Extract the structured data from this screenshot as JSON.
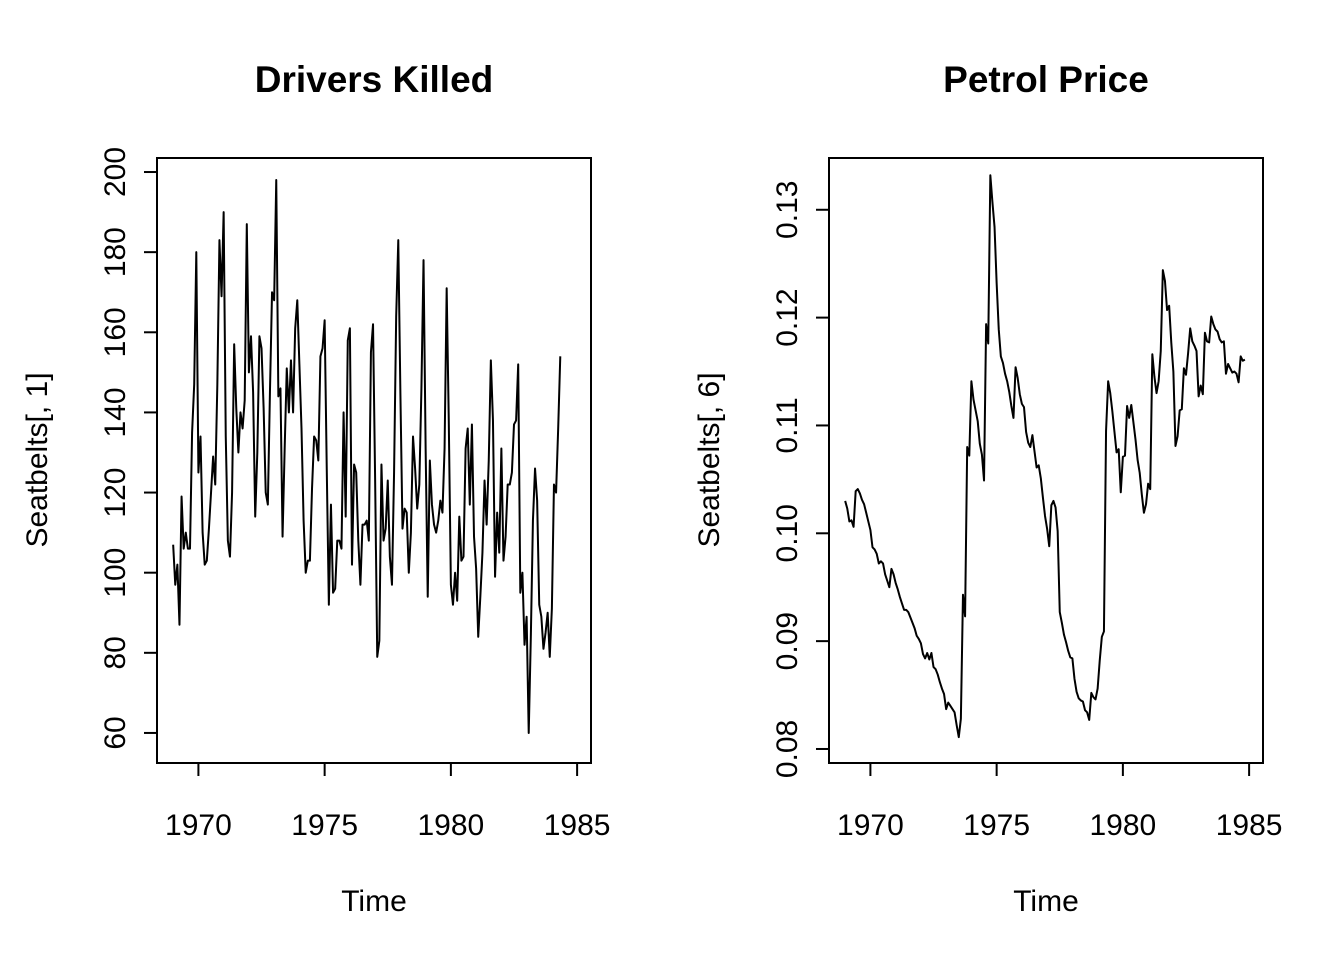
{
  "chart_data": [
    {
      "type": "line",
      "title": "Drivers Killed",
      "xlabel": "Time",
      "ylabel": "Seatbelts[, 1]",
      "xlim": [
        1968.36,
        1985.55
      ],
      "ylim": [
        52.5,
        203.5
      ],
      "xticks": [
        1970,
        1975,
        1980,
        1985
      ],
      "xtick_labels": [
        "1970",
        "1975",
        "1980",
        "1985"
      ],
      "yticks": [
        60,
        80,
        100,
        120,
        140,
        160,
        180,
        200
      ],
      "ytick_labels": [
        "60",
        "80",
        "100",
        "120",
        "140",
        "160",
        "180",
        "200"
      ],
      "grid": false,
      "legend": "none",
      "x_start": 1969,
      "frequency": 12,
      "series": [
        {
          "values": [
            107,
            97,
            102,
            87,
            119,
            106,
            110,
            106,
            106,
            135,
            147,
            180,
            125,
            134,
            110,
            102,
            103,
            111,
            120,
            129,
            122,
            147,
            183,
            169,
            190,
            134,
            108,
            104,
            120,
            157,
            141,
            130,
            140,
            136,
            143,
            187,
            150,
            159,
            145,
            114,
            130,
            159,
            156,
            141,
            120,
            117,
            145,
            170,
            168,
            198,
            144,
            146,
            109,
            131,
            151,
            140,
            153,
            140,
            161,
            168,
            152,
            136,
            113,
            100,
            103,
            103,
            121,
            134,
            133,
            128,
            154,
            156,
            163,
            126,
            92,
            117,
            95,
            96,
            108,
            108,
            106,
            140,
            114,
            158,
            161,
            102,
            127,
            125,
            108,
            97,
            112,
            112,
            113,
            108,
            155,
            162,
            123,
            79,
            83,
            127,
            108,
            111,
            123,
            104,
            97,
            125,
            164,
            183,
            145,
            111,
            116,
            115,
            100,
            110,
            134,
            126,
            116,
            122,
            146,
            178,
            131,
            94,
            128,
            117,
            112,
            110,
            113,
            118,
            115,
            131,
            171,
            138,
            97,
            92,
            100,
            93,
            114,
            103,
            104,
            131,
            136,
            117,
            137,
            109,
            101,
            84,
            94,
            105,
            123,
            112,
            128,
            153,
            138,
            99,
            115,
            105,
            131,
            103,
            109,
            122,
            122,
            125,
            137,
            138,
            152,
            95,
            100,
            82,
            89,
            60,
            84,
            113,
            126,
            118,
            92,
            89,
            81,
            85,
            90,
            79,
            91,
            122,
            120,
            136,
            154
          ]
        }
      ]
    },
    {
      "type": "line",
      "title": "Petrol Price",
      "xlabel": "Time",
      "ylabel": "Seatbelts[, 6]",
      "xlim": [
        1968.36,
        1985.55
      ],
      "ylim": [
        0.0787,
        0.1348
      ],
      "xticks": [
        1970,
        1975,
        1980,
        1985
      ],
      "xtick_labels": [
        "1970",
        "1975",
        "1980",
        "1985"
      ],
      "yticks": [
        0.08,
        0.09,
        0.1,
        0.11,
        0.12,
        0.13
      ],
      "ytick_labels": [
        "0.08",
        "0.09",
        "0.10",
        "0.11",
        "0.12",
        "0.13"
      ],
      "grid": false,
      "legend": "none",
      "x_start": 1969,
      "frequency": 12,
      "series": [
        {
          "values": [
            0.103,
            0.1023,
            0.1011,
            0.1012,
            0.1006,
            0.1039,
            0.1041,
            0.1037,
            0.1031,
            0.1027,
            0.1019,
            0.1011,
            0.1003,
            0.0987,
            0.0985,
            0.0981,
            0.0972,
            0.0974,
            0.0972,
            0.0962,
            0.0956,
            0.095,
            0.0967,
            0.0962,
            0.0954,
            0.0948,
            0.0941,
            0.0935,
            0.0929,
            0.0929,
            0.0927,
            0.0922,
            0.0917,
            0.0912,
            0.0905,
            0.0902,
            0.0898,
            0.0888,
            0.0884,
            0.0889,
            0.0883,
            0.0889,
            0.0876,
            0.0874,
            0.0869,
            0.0862,
            0.0856,
            0.0851,
            0.0837,
            0.0843,
            0.084,
            0.0837,
            0.0834,
            0.0822,
            0.0811,
            0.0828,
            0.0943,
            0.0923,
            0.108,
            0.1072,
            0.1141,
            0.1124,
            0.1114,
            0.1104,
            0.1083,
            0.1073,
            0.1049,
            0.1194,
            0.1176,
            0.1332,
            0.1307,
            0.1284,
            0.1232,
            0.1189,
            0.1164,
            0.1158,
            0.1148,
            0.1141,
            0.1131,
            0.1118,
            0.1107,
            0.1154,
            0.1144,
            0.1129,
            0.112,
            0.1117,
            0.1094,
            0.1084,
            0.108,
            0.1091,
            0.1076,
            0.1061,
            0.1063,
            0.1051,
            0.1033,
            0.1016,
            0.1004,
            0.0988,
            0.1026,
            0.103,
            0.1024,
            0.1002,
            0.0927,
            0.0917,
            0.0906,
            0.0899,
            0.0891,
            0.0885,
            0.0884,
            0.0865,
            0.0853,
            0.0847,
            0.0845,
            0.0844,
            0.0836,
            0.0834,
            0.0827,
            0.0852,
            0.0848,
            0.0846,
            0.0856,
            0.0882,
            0.0904,
            0.0909,
            0.1095,
            0.1141,
            0.113,
            0.1113,
            0.1094,
            0.1075,
            0.1078,
            0.1038,
            0.1071,
            0.1072,
            0.1118,
            0.1107,
            0.1119,
            0.1103,
            0.1087,
            0.1068,
            0.1056,
            0.1036,
            0.1019,
            0.1027,
            0.1046,
            0.1041,
            0.1166,
            0.1145,
            0.113,
            0.1141,
            0.1169,
            0.1244,
            0.1234,
            0.1207,
            0.1211,
            0.1177,
            0.115,
            0.1081,
            0.109,
            0.1114,
            0.1115,
            0.1153,
            0.1147,
            0.1167,
            0.119,
            0.1178,
            0.1174,
            0.1169,
            0.1127,
            0.1137,
            0.1129,
            0.1186,
            0.1178,
            0.1177,
            0.1201,
            0.1194,
            0.1189,
            0.1187,
            0.118,
            0.1177,
            0.1178,
            0.1148,
            0.1157,
            0.1153,
            0.1149,
            0.115,
            0.1148,
            0.114,
            0.1164,
            0.116,
            0.1161
          ]
        }
      ]
    }
  ]
}
